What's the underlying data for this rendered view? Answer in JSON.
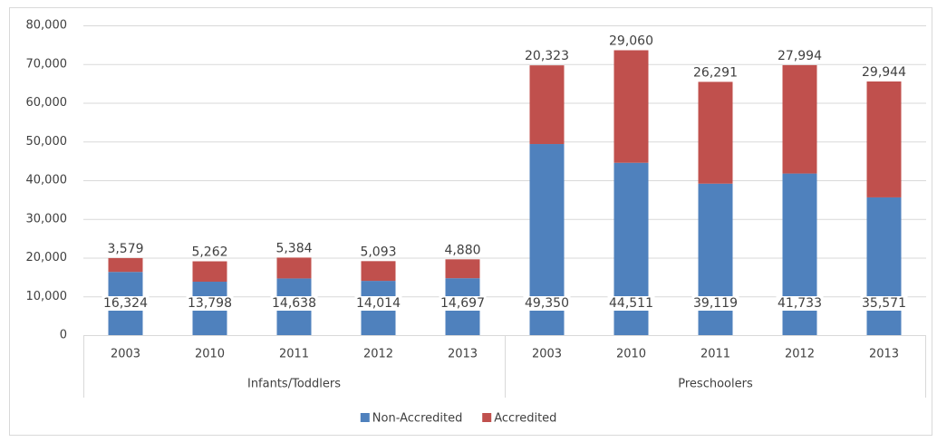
{
  "chart_data": {
    "type": "stacked-bar",
    "groups": [
      {
        "name": "Infants/Toddlers",
        "categories": [
          "2003",
          "2010",
          "2011",
          "2012",
          "2013"
        ]
      },
      {
        "name": "Preschoolers",
        "categories": [
          "2003",
          "2010",
          "2011",
          "2012",
          "2013"
        ]
      }
    ],
    "series": [
      {
        "name": "Non-Accredited",
        "color": "#4f81bd",
        "values": [
          16324,
          13798,
          14638,
          14014,
          14697,
          49350,
          44511,
          39119,
          41733,
          35571
        ],
        "value_labels": [
          "16,324",
          "13,798",
          "14,638",
          "14,014",
          "14,697",
          "49,350",
          "44,511",
          "39,119",
          "41,733",
          "35,571"
        ]
      },
      {
        "name": "Accredited",
        "color": "#c0504d",
        "values": [
          3579,
          5262,
          5384,
          5093,
          4880,
          20323,
          29060,
          26291,
          27994,
          29944
        ],
        "value_labels": [
          "3,579",
          "5,262",
          "5,384",
          "5,093",
          "4,880",
          "20,323",
          "29,060",
          "26,291",
          "27,994",
          "29,944"
        ]
      }
    ],
    "ylim": [
      0,
      80000
    ],
    "yticks": [
      0,
      {
        "value": 10000,
        "label": "10,000"
      },
      {
        "value": 20000,
        "label": "20,000"
      },
      {
        "value": 30000,
        "label": "30,000"
      },
      {
        "value": 40000,
        "label": "40,000"
      },
      {
        "value": 50000,
        "label": "50,000"
      },
      {
        "value": 60000,
        "label": "60,000"
      },
      {
        "value": 70000,
        "label": "70,000"
      },
      {
        "value": 80000,
        "label": "80,000"
      }
    ],
    "grid": true,
    "legend": "bottom"
  }
}
